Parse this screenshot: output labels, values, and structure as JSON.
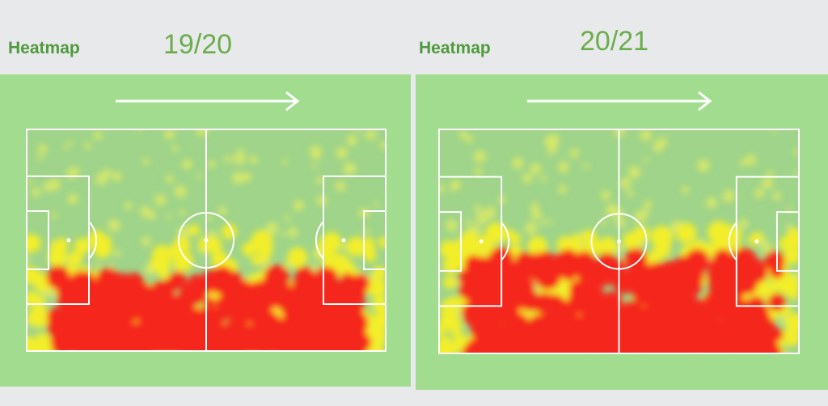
{
  "panels": [
    {
      "label": "Heatmap",
      "season": "19/20"
    },
    {
      "label": "Heatmap",
      "season": "20/21"
    }
  ]
}
